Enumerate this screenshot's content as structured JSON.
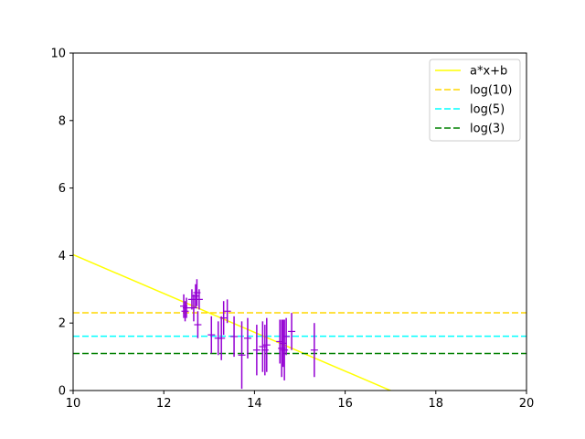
{
  "chart_data": {
    "type": "scatter",
    "title": "",
    "xlabel": "",
    "ylabel": "",
    "xlim": [
      10,
      20
    ],
    "ylim": [
      0,
      10
    ],
    "xticks": [
      "10",
      "12",
      "14",
      "16",
      "18",
      "20"
    ],
    "yticks": [
      "0",
      "2",
      "4",
      "6",
      "8",
      "10"
    ],
    "grid": false,
    "legend_position": "top-right",
    "series": [
      {
        "name": "a*x+b",
        "kind": "line",
        "color": "#ffff00",
        "dash": "solid",
        "slope": -0.575,
        "intercept": 9.775
      },
      {
        "name": "log(10)",
        "kind": "hline",
        "color": "#ffd700",
        "dash": "dashed",
        "y": 2.302585
      },
      {
        "name": "log(5)",
        "kind": "hline",
        "color": "#00ffff",
        "dash": "dashed",
        "y": 1.609438
      },
      {
        "name": "log(3)",
        "kind": "hline",
        "color": "#008000",
        "dash": "dashed",
        "y": 1.098612
      }
    ],
    "errorbar_series": {
      "color": "#9400d3",
      "points": [
        {
          "x": 12.44,
          "y": 2.5,
          "yerr": 0.35
        },
        {
          "x": 12.47,
          "y": 2.35,
          "yerr": 0.3
        },
        {
          "x": 12.5,
          "y": 2.45,
          "yerr": 0.3
        },
        {
          "x": 12.62,
          "y": 2.7,
          "yerr": 0.3
        },
        {
          "x": 12.66,
          "y": 2.45,
          "yerr": 0.4
        },
        {
          "x": 12.7,
          "y": 2.8,
          "yerr": 0.35
        },
        {
          "x": 12.73,
          "y": 2.9,
          "yerr": 0.4
        },
        {
          "x": 12.75,
          "y": 1.95,
          "yerr": 0.4
        },
        {
          "x": 12.78,
          "y": 2.7,
          "yerr": 0.3
        },
        {
          "x": 13.05,
          "y": 1.65,
          "yerr": 0.55
        },
        {
          "x": 13.2,
          "y": 1.55,
          "yerr": 0.5
        },
        {
          "x": 13.27,
          "y": 1.55,
          "yerr": 0.65
        },
        {
          "x": 13.32,
          "y": 2.15,
          "yerr": 0.5
        },
        {
          "x": 13.4,
          "y": 2.35,
          "yerr": 0.35
        },
        {
          "x": 13.55,
          "y": 1.6,
          "yerr": 0.6
        },
        {
          "x": 13.72,
          "y": 1.05,
          "yerr": 1.0
        },
        {
          "x": 13.85,
          "y": 1.55,
          "yerr": 0.6
        },
        {
          "x": 14.05,
          "y": 1.2,
          "yerr": 0.75
        },
        {
          "x": 14.18,
          "y": 1.3,
          "yerr": 0.75
        },
        {
          "x": 14.23,
          "y": 1.2,
          "yerr": 0.75
        },
        {
          "x": 14.27,
          "y": 1.35,
          "yerr": 0.8
        },
        {
          "x": 14.56,
          "y": 1.45,
          "yerr": 0.65
        },
        {
          "x": 14.6,
          "y": 1.25,
          "yerr": 0.85
        },
        {
          "x": 14.63,
          "y": 1.4,
          "yerr": 0.7
        },
        {
          "x": 14.66,
          "y": 1.2,
          "yerr": 0.9
        },
        {
          "x": 14.7,
          "y": 1.6,
          "yerr": 0.55
        },
        {
          "x": 14.82,
          "y": 1.75,
          "yerr": 0.55
        },
        {
          "x": 15.32,
          "y": 1.2,
          "yerr": 0.8
        }
      ]
    }
  }
}
